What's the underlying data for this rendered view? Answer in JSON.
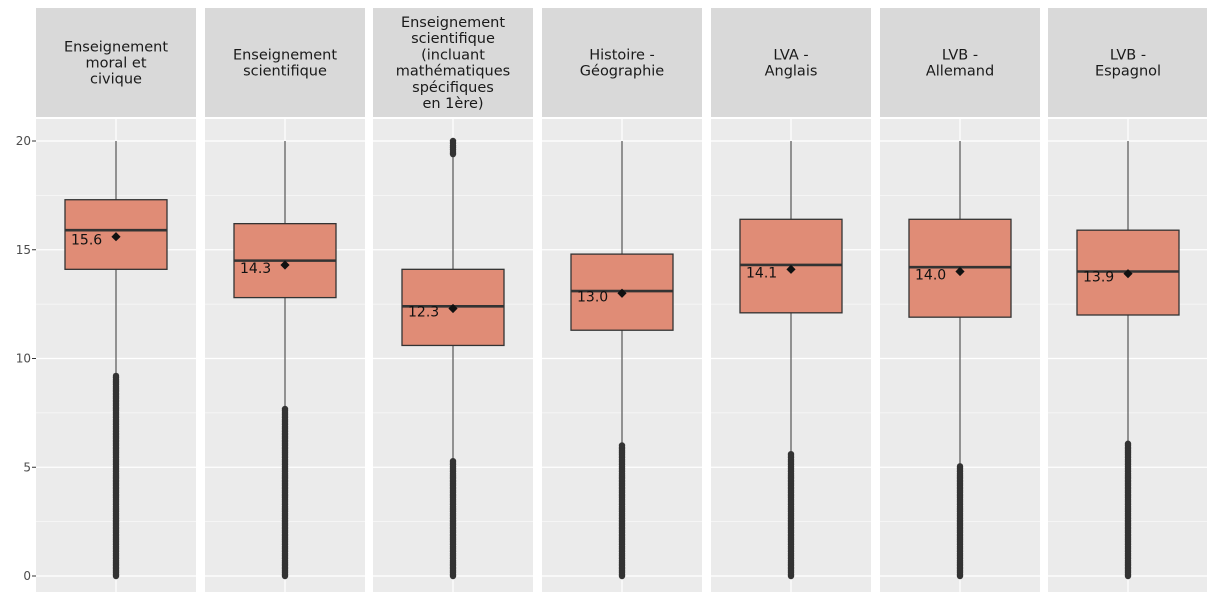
{
  "chart_data": {
    "type": "boxplot",
    "facets": [
      {
        "label": "Enseignement\nmoral et\ncivique",
        "q1": 14.1,
        "median": 15.9,
        "q3": 17.3,
        "mean": 15.6,
        "mean_label": "15.6",
        "whisker_low": 9.2,
        "whisker_high": 20.0,
        "outlier_range": [
          0,
          9.2
        ],
        "extra_outliers": []
      },
      {
        "label": "Enseignement\nscientifique",
        "q1": 12.8,
        "median": 14.5,
        "q3": 16.2,
        "mean": 14.3,
        "mean_label": "14.3",
        "whisker_low": 7.7,
        "whisker_high": 20.0,
        "outlier_range": [
          0,
          7.7
        ],
        "extra_outliers": []
      },
      {
        "label": "Enseignement\nscientifique\n(incluant\nmathématiques\nspécifiques\nen 1ère)",
        "q1": 10.6,
        "median": 12.4,
        "q3": 14.1,
        "mean": 12.3,
        "mean_label": "12.3",
        "whisker_low": 5.3,
        "whisker_high": 19.3,
        "outlier_range": [
          0,
          5.3
        ],
        "extra_outliers": [
          19.4,
          19.5,
          19.6,
          19.7,
          19.8,
          19.9,
          20.0
        ]
      },
      {
        "label": "Histoire -\nGéographie",
        "q1": 11.3,
        "median": 13.1,
        "q3": 14.8,
        "mean": 13.0,
        "mean_label": "13.0",
        "whisker_low": 6.0,
        "whisker_high": 20.0,
        "outlier_range": [
          0,
          6.0
        ],
        "extra_outliers": []
      },
      {
        "label": "LVA -\nAnglais",
        "q1": 12.1,
        "median": 14.3,
        "q3": 16.4,
        "mean": 14.1,
        "mean_label": "14.1",
        "whisker_low": 5.6,
        "whisker_high": 20.0,
        "outlier_range": [
          0,
          5.6
        ],
        "extra_outliers": []
      },
      {
        "label": "LVB -\nAllemand",
        "q1": 11.9,
        "median": 14.2,
        "q3": 16.4,
        "mean": 14.0,
        "mean_label": "14.0",
        "whisker_low": 5.1,
        "whisker_high": 20.0,
        "outlier_range": [
          0,
          5.1
        ],
        "extra_outliers": []
      },
      {
        "label": "LVB -\nEspagnol",
        "q1": 12.0,
        "median": 14.0,
        "q3": 15.9,
        "mean": 13.9,
        "mean_label": "13.9",
        "whisker_low": 6.1,
        "whisker_high": 20.0,
        "outlier_range": [
          0,
          6.1
        ],
        "extra_outliers": []
      }
    ],
    "y_ticks": [
      0,
      5,
      10,
      15,
      20
    ],
    "y_tick_labels": [
      "0",
      "5",
      "10",
      "15",
      "20"
    ],
    "ylim": [
      -0.5,
      21
    ],
    "grid": true,
    "legend": "none",
    "colors": {
      "box_fill": "#E08C76",
      "box_stroke": "#333333",
      "panel_bg": "#EBEBEB",
      "strip_bg": "#D9D9D9",
      "grid": "#FFFFFF",
      "text": "#1A1A1A",
      "tick_text": "#4D4D4D"
    }
  }
}
